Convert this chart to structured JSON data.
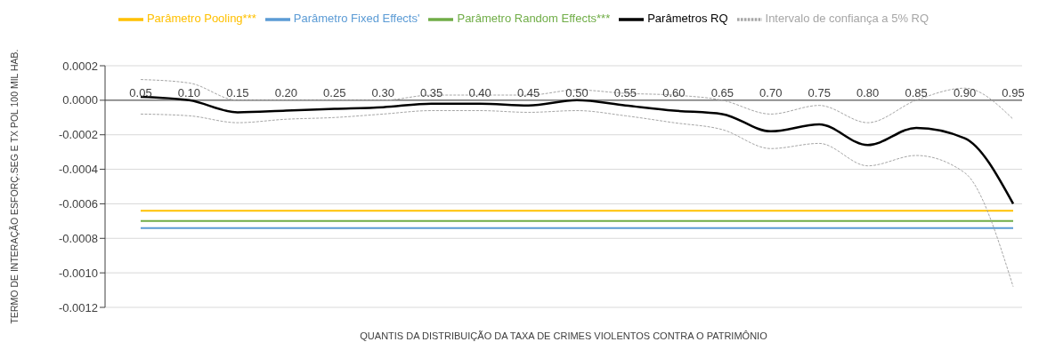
{
  "chart_data": {
    "type": "line",
    "xlabel": "QUANTIS DA DISTRIBUIÇÃO DA TAXA DE CRIMES VIOLENTOS CONTRA O PATRIMÔNIO",
    "ylabel": "TERMO DE INTERAÇÃO ESFORÇ.SEG E TX POL 100 MIL HAB.",
    "categories": [
      "0.05",
      "0.10",
      "0.15",
      "0.20",
      "0.25",
      "0.30",
      "0.35",
      "0.40",
      "0.45",
      "0.50",
      "0.55",
      "0.60",
      "0.65",
      "0.70",
      "0.75",
      "0.80",
      "0.85",
      "0.90",
      "0.95"
    ],
    "series": [
      {
        "name": "Parâmetro Pooling***",
        "color": "#ffc000",
        "values": [
          -0.00064,
          -0.00064,
          -0.00064,
          -0.00064,
          -0.00064,
          -0.00064,
          -0.00064,
          -0.00064,
          -0.00064,
          -0.00064,
          -0.00064,
          -0.00064,
          -0.00064,
          -0.00064,
          -0.00064,
          -0.00064,
          -0.00064,
          -0.00064,
          -0.00064
        ]
      },
      {
        "name": "Parâmetro Fixed Effects'",
        "color": "#5b9bd5",
        "values": [
          -0.00074,
          -0.00074,
          -0.00074,
          -0.00074,
          -0.00074,
          -0.00074,
          -0.00074,
          -0.00074,
          -0.00074,
          -0.00074,
          -0.00074,
          -0.00074,
          -0.00074,
          -0.00074,
          -0.00074,
          -0.00074,
          -0.00074,
          -0.00074,
          -0.00074
        ]
      },
      {
        "name": "Parâmetro Random Effects***",
        "color": "#70ad47",
        "values": [
          -0.0007,
          -0.0007,
          -0.0007,
          -0.0007,
          -0.0007,
          -0.0007,
          -0.0007,
          -0.0007,
          -0.0007,
          -0.0007,
          -0.0007,
          -0.0007,
          -0.0007,
          -0.0007,
          -0.0007,
          -0.0007,
          -0.0007,
          -0.0007,
          -0.0007
        ]
      },
      {
        "name": "Parâmetros RQ",
        "color": "#000000",
        "values": [
          2e-05,
          0.0,
          -7e-05,
          -6e-05,
          -5e-05,
          -4e-05,
          -2e-05,
          -2e-05,
          -3e-05,
          0.0,
          -3e-05,
          -6e-05,
          -8e-05,
          -0.00018,
          -0.00014,
          -0.00026,
          -0.00016,
          -0.00022,
          -0.0006
        ]
      },
      {
        "name": "Intervalo de confiança a 5% RQ",
        "color": "#a6a6a6",
        "line_style": "dashed",
        "values": [
          -8e-05,
          -9e-05,
          -0.00013,
          -0.00011,
          -0.0001,
          -8e-05,
          -6e-05,
          -6e-05,
          -7e-05,
          -6e-05,
          -9e-05,
          -0.00013,
          -0.00017,
          -0.00028,
          -0.00025,
          -0.00038,
          -0.00032,
          -0.00042,
          -0.00108
        ]
      },
      {
        "color": "#a6a6a6",
        "line_style": "dashed",
        "values": [
          0.00012,
          0.0001,
          0.0,
          0.0,
          0.0,
          0.0,
          3e-05,
          3e-05,
          3e-05,
          6e-05,
          4e-05,
          3e-05,
          0.0,
          -8e-05,
          -3e-05,
          -0.00013,
          0.0,
          7e-05,
          -0.00011
        ]
      }
    ],
    "ylim": [
      -0.0012,
      0.0002
    ],
    "yticks": [
      0.0002,
      {
        "value": 0,
        "label": "0.0000"
      },
      -0.0002,
      -0.0004,
      -0.0006,
      -0.0008,
      {
        "value": -0.001,
        "label": "-0.0010"
      },
      -0.0012
    ],
    "grid": "y",
    "legend": "top",
    "marker": "none",
    "line_style": "solid"
  }
}
